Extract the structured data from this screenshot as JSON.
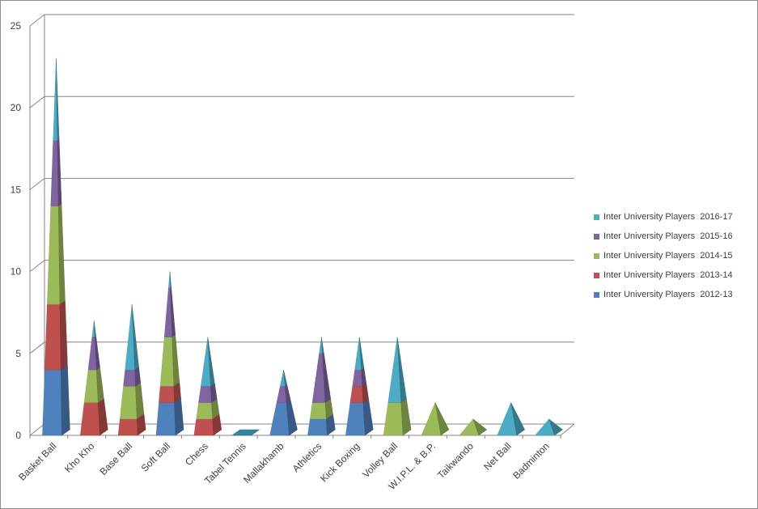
{
  "chart_data": {
    "type": "bar",
    "style": "stacked 3D pyramid",
    "categories": [
      "Basket Ball",
      "Kho Kho",
      "Base Ball",
      "Soft Ball",
      "Chess",
      "Tabel Tennis",
      "Mallakhamb",
      "Athletics",
      "Kick Boxing",
      "Volley Ball",
      "W.I.P.L. & B.P.",
      "Taikwando",
      "Net Ball",
      "Badminton"
    ],
    "series": [
      {
        "name": "Inter University Players  2012-13",
        "color": "#4F81BD",
        "values": [
          4,
          0,
          0,
          2,
          0,
          0,
          2,
          1,
          2,
          0,
          0,
          0,
          0,
          0
        ]
      },
      {
        "name": "Inter University Players  2013-14",
        "color": "#C0504D",
        "values": [
          4,
          2,
          1,
          1,
          1,
          0,
          0,
          0,
          1,
          0,
          0,
          0,
          0,
          0
        ]
      },
      {
        "name": "Inter University Players  2014-15",
        "color": "#9BBB59",
        "values": [
          6,
          2,
          2,
          3,
          1,
          0,
          0,
          1,
          0,
          2,
          2,
          1,
          0,
          0
        ]
      },
      {
        "name": "Inter University Players  2015-16",
        "color": "#8064A2",
        "values": [
          4,
          2,
          1,
          3,
          1,
          0,
          1,
          3,
          1,
          0,
          0,
          0,
          0,
          0
        ]
      },
      {
        "name": "Inter University Players  2016-17",
        "color": "#4BACC6",
        "values": [
          5,
          1,
          4,
          1,
          3,
          0,
          1,
          1,
          2,
          4,
          0,
          0,
          2,
          1
        ]
      }
    ],
    "y_ticks": [
      "0",
      "5",
      "10",
      "15",
      "20",
      "25"
    ],
    "ylim": [
      0,
      25
    ],
    "grid": true,
    "legend_position": "right"
  }
}
